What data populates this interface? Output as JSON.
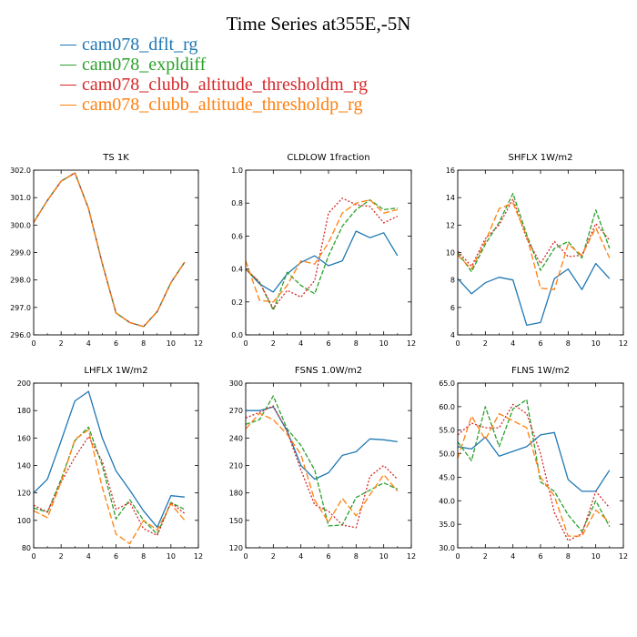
{
  "figure_title": "Time Series at355E,-5N",
  "colors": {
    "cam078_dflt_rg": "#1f77b4",
    "cam078_expldiff": "#2ca02c",
    "cam078_clubb_altitude_thresholdm_rg": "#d62728",
    "cam078_clubb_altitude_thresholdp_rg": "#ff7f0e"
  },
  "legend": [
    {
      "name": "cam078_dflt_rg",
      "color": "#1f77b4"
    },
    {
      "name": "cam078_expldiff",
      "color": "#2ca02c"
    },
    {
      "name": "cam078_clubb_altitude_thresholdm_rg",
      "color": "#d62728"
    },
    {
      "name": "cam078_clubb_altitude_thresholdp_rg",
      "color": "#ff7f0e"
    }
  ],
  "chart_data": [
    {
      "type": "line",
      "title": "TS   1K",
      "xlim": [
        0,
        12
      ],
      "xticks": [
        "0",
        "2",
        "4",
        "6",
        "8",
        "10",
        "12"
      ],
      "ylim": [
        296,
        302
      ],
      "yticks": [
        "296.0",
        "297.0",
        "298.0",
        "299.0",
        "300.0",
        "301.0",
        "302.0"
      ],
      "x": [
        0,
        1,
        2,
        3,
        4,
        5,
        6,
        7,
        8,
        9,
        10,
        11
      ],
      "series": [
        {
          "name": "cam078_dflt_rg",
          "values": [
            300.1,
            300.9,
            301.6,
            301.9,
            300.6,
            298.6,
            296.8,
            296.45,
            296.3,
            296.85,
            297.9,
            298.65
          ]
        },
        {
          "name": "cam078_expldiff",
          "values": [
            300.1,
            300.9,
            301.6,
            301.9,
            300.6,
            298.6,
            296.8,
            296.45,
            296.3,
            296.85,
            297.9,
            298.65
          ]
        },
        {
          "name": "cam078_clubb_altitude_thresholdm_rg",
          "values": [
            300.1,
            300.9,
            301.6,
            301.9,
            300.6,
            298.6,
            296.8,
            296.45,
            296.3,
            296.85,
            297.9,
            298.65
          ]
        },
        {
          "name": "cam078_clubb_altitude_thresholdp_rg",
          "values": [
            300.1,
            300.9,
            301.6,
            301.9,
            300.6,
            298.6,
            296.8,
            296.45,
            296.3,
            296.85,
            297.9,
            298.65
          ]
        }
      ]
    },
    {
      "type": "line",
      "title": "CLDLOW   1fraction",
      "xlim": [
        0,
        12
      ],
      "xticks": [
        "0",
        "2",
        "4",
        "6",
        "8",
        "10",
        "12"
      ],
      "ylim": [
        0,
        1
      ],
      "yticks": [
        "0.0",
        "0.2",
        "0.4",
        "0.6",
        "0.8",
        "1.0"
      ],
      "x": [
        0,
        1,
        2,
        3,
        4,
        5,
        6,
        7,
        8,
        9,
        10,
        11
      ],
      "series": [
        {
          "name": "cam078_dflt_rg",
          "values": [
            0.4,
            0.31,
            0.26,
            0.37,
            0.44,
            0.48,
            0.42,
            0.45,
            0.63,
            0.59,
            0.62,
            0.48
          ]
        },
        {
          "name": "cam078_expldiff",
          "values": [
            0.4,
            0.32,
            0.15,
            0.38,
            0.3,
            0.25,
            0.48,
            0.66,
            0.76,
            0.82,
            0.76,
            0.77
          ]
        },
        {
          "name": "cam078_clubb_altitude_thresholdm_rg",
          "values": [
            0.4,
            0.32,
            0.16,
            0.27,
            0.23,
            0.33,
            0.74,
            0.83,
            0.79,
            0.78,
            0.68,
            0.72
          ]
        },
        {
          "name": "cam078_clubb_altitude_thresholdp_rg",
          "values": [
            0.45,
            0.21,
            0.2,
            0.3,
            0.45,
            0.43,
            0.56,
            0.74,
            0.8,
            0.82,
            0.74,
            0.76
          ]
        }
      ]
    },
    {
      "type": "line",
      "title": "SHFLX   1W/m2",
      "xlim": [
        0,
        12
      ],
      "xticks": [
        "0",
        "2",
        "4",
        "6",
        "8",
        "10",
        "12"
      ],
      "ylim": [
        4,
        16
      ],
      "yticks": [
        "4",
        "6",
        "8",
        "10",
        "12",
        "14",
        "16"
      ],
      "x": [
        0,
        1,
        2,
        3,
        4,
        5,
        6,
        7,
        8,
        9,
        10,
        11
      ],
      "series": [
        {
          "name": "cam078_dflt_rg",
          "values": [
            8.1,
            7.0,
            7.8,
            8.2,
            8.0,
            4.7,
            4.9,
            8.1,
            8.8,
            7.3,
            9.2,
            8.1
          ]
        },
        {
          "name": "cam078_expldiff",
          "values": [
            10.0,
            8.6,
            10.6,
            12.2,
            14.3,
            11.3,
            8.7,
            10.3,
            10.8,
            9.6,
            13.1,
            10.3
          ]
        },
        {
          "name": "cam078_clubb_altitude_thresholdm_rg",
          "values": [
            10.1,
            9.0,
            11.0,
            12.0,
            13.9,
            11.0,
            9.2,
            10.8,
            9.7,
            9.8,
            12.1,
            10.9
          ]
        },
        {
          "name": "cam078_clubb_altitude_thresholdp_rg",
          "values": [
            9.8,
            8.8,
            10.8,
            13.2,
            13.6,
            11.2,
            7.4,
            7.3,
            10.6,
            9.8,
            11.8,
            9.6
          ]
        }
      ]
    },
    {
      "type": "line",
      "title": "LHFLX   1W/m2",
      "xlim": [
        0,
        12
      ],
      "xticks": [
        "0",
        "2",
        "4",
        "6",
        "8",
        "10",
        "12"
      ],
      "ylim": [
        80,
        200
      ],
      "yticks": [
        "80",
        "100",
        "120",
        "140",
        "160",
        "180",
        "200"
      ],
      "x": [
        0,
        1,
        2,
        3,
        4,
        5,
        6,
        7,
        8,
        9,
        10,
        11
      ],
      "series": [
        {
          "name": "cam078_dflt_rg",
          "values": [
            120,
            130,
            158,
            187,
            194,
            160,
            136,
            122,
            107,
            95,
            118,
            117
          ]
        },
        {
          "name": "cam078_expldiff",
          "values": [
            109,
            106,
            130,
            158,
            168,
            140,
            101,
            115,
            100,
            90,
            113,
            108
          ]
        },
        {
          "name": "cam078_clubb_altitude_thresholdm_rg",
          "values": [
            111,
            106,
            128,
            146,
            161,
            143,
            108,
            113,
            94,
            89,
            113,
            105
          ]
        },
        {
          "name": "cam078_clubb_altitude_thresholdp_rg",
          "values": [
            107,
            102,
            128,
            159,
            166,
            124,
            90,
            83,
            100,
            93,
            112,
            100
          ]
        }
      ]
    },
    {
      "type": "line",
      "title": "FSNS   1.0W/m2",
      "xlim": [
        0,
        12
      ],
      "xticks": [
        "0",
        "2",
        "4",
        "6",
        "8",
        "10",
        "12"
      ],
      "ylim": [
        120,
        300
      ],
      "yticks": [
        "120",
        "150",
        "180",
        "210",
        "240",
        "270",
        "300"
      ],
      "x": [
        0,
        1,
        2,
        3,
        4,
        5,
        6,
        7,
        8,
        9,
        10,
        11
      ],
      "series": [
        {
          "name": "cam078_dflt_rg",
          "values": [
            270,
            270,
            274,
            248,
            210,
            195,
            202,
            221,
            225,
            239,
            238,
            236
          ]
        },
        {
          "name": "cam078_expldiff",
          "values": [
            255,
            260,
            286,
            250,
            232,
            205,
            144,
            145,
            175,
            183,
            191,
            184
          ]
        },
        {
          "name": "cam078_clubb_altitude_thresholdm_rg",
          "values": [
            262,
            268,
            275,
            247,
            205,
            167,
            160,
            145,
            142,
            198,
            210,
            195
          ]
        },
        {
          "name": "cam078_clubb_altitude_thresholdp_rg",
          "values": [
            250,
            267,
            260,
            244,
            222,
            172,
            148,
            174,
            155,
            178,
            200,
            182
          ]
        }
      ]
    },
    {
      "type": "line",
      "title": "FLNS   1W/m2",
      "xlim": [
        0,
        12
      ],
      "xticks": [
        "0",
        "2",
        "4",
        "6",
        "8",
        "10",
        "12"
      ],
      "ylim": [
        30,
        65
      ],
      "yticks": [
        "30.0",
        "35.0",
        "40.0",
        "45.0",
        "50.0",
        "55.0",
        "60.0",
        "65.0"
      ],
      "x": [
        0,
        1,
        2,
        3,
        4,
        5,
        6,
        7,
        8,
        9,
        10,
        11
      ],
      "series": [
        {
          "name": "cam078_dflt_rg",
          "values": [
            51.5,
            51.0,
            53.5,
            49.5,
            50.5,
            51.5,
            54.0,
            54.5,
            44.5,
            42.0,
            42.0,
            46.5
          ]
        },
        {
          "name": "cam078_expldiff",
          "values": [
            52.5,
            48.5,
            60.0,
            51.5,
            59.5,
            61.5,
            44.0,
            42.0,
            37.0,
            33.5,
            40.0,
            34.5
          ]
        },
        {
          "name": "cam078_clubb_altitude_thresholdm_rg",
          "values": [
            54.0,
            56.5,
            55.5,
            55.5,
            60.5,
            58.5,
            50.0,
            37.5,
            31.5,
            33.0,
            42.0,
            38.5
          ]
        },
        {
          "name": "cam078_clubb_altitude_thresholdp_rg",
          "values": [
            49.0,
            58.0,
            53.0,
            58.5,
            57.0,
            55.5,
            45.0,
            41.0,
            32.5,
            32.5,
            38.0,
            35.5
          ]
        }
      ]
    }
  ]
}
